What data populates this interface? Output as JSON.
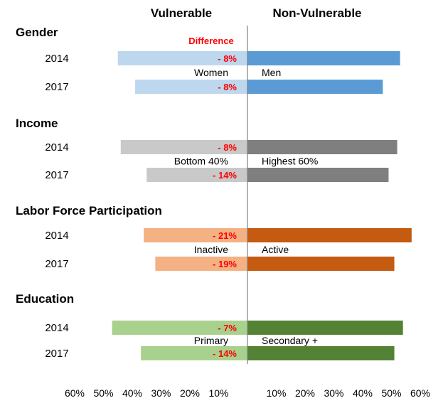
{
  "chart_data": {
    "type": "bar",
    "orientation": "horizontal-diverging",
    "headers": {
      "left": "Vulnerable",
      "right": "Non-Vulnerable"
    },
    "difference_title": "Difference",
    "xticks_left": [
      "60%",
      "50%",
      "40%",
      "30%",
      "20%",
      "10%"
    ],
    "xticks_right": [
      "10%",
      "20%",
      "30%",
      "40%",
      "50%",
      "60%"
    ],
    "xlim": [
      0,
      60
    ],
    "groups": [
      {
        "name": "Gender",
        "left_label": "Women",
        "right_label": "Men",
        "light": "#BDD7EE",
        "dark": "#5B9BD5",
        "rows": [
          {
            "year": "2014",
            "vulnerable": 45,
            "non_vulnerable": 53,
            "difference": "- 8%"
          },
          {
            "year": "2017",
            "vulnerable": 39,
            "non_vulnerable": 47,
            "difference": "- 8%"
          }
        ]
      },
      {
        "name": "Income",
        "left_label": "Bottom 40%",
        "right_label": "Highest 60%",
        "light": "#C9C9C9",
        "dark": "#7F7F7F",
        "rows": [
          {
            "year": "2014",
            "vulnerable": 44,
            "non_vulnerable": 52,
            "difference": "- 8%"
          },
          {
            "year": "2017",
            "vulnerable": 35,
            "non_vulnerable": 49,
            "difference": "- 14%"
          }
        ]
      },
      {
        "name": "Labor Force Participation",
        "left_label": "Inactive",
        "right_label": "Active",
        "light": "#F4B183",
        "dark": "#C55A11",
        "rows": [
          {
            "year": "2014",
            "vulnerable": 36,
            "non_vulnerable": 57,
            "difference": "- 21%"
          },
          {
            "year": "2017",
            "vulnerable": 32,
            "non_vulnerable": 51,
            "difference": "- 19%"
          }
        ]
      },
      {
        "name": "Education",
        "left_label": "Primary",
        "right_label": "Secondary +",
        "light": "#A9D18E",
        "dark": "#548235",
        "rows": [
          {
            "year": "2014",
            "vulnerable": 47,
            "non_vulnerable": 54,
            "difference": "- 7%"
          },
          {
            "year": "2017",
            "vulnerable": 37,
            "non_vulnerable": 51,
            "difference": "- 14%"
          }
        ]
      }
    ]
  }
}
